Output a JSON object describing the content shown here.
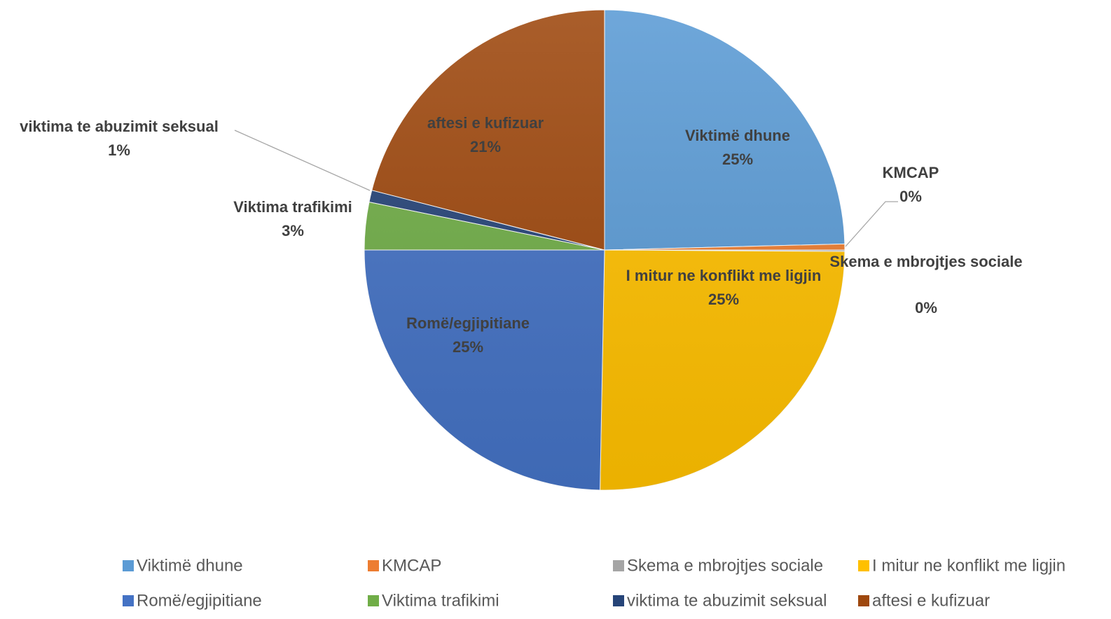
{
  "chart_data": {
    "type": "pie",
    "categories": [
      "Viktimë dhune",
      "KMCAP",
      "Skema e mbrojtjes sociale",
      "I mitur ne konflikt me ligjin",
      "Romë/egjipitiane",
      "Viktima trafikimi",
      "viktima te abuzimit seksual",
      "aftesi e kufizuar"
    ],
    "values": [
      24.6,
      0.4,
      0.1,
      25.2,
      24.7,
      3.2,
      0.8,
      21.0
    ],
    "value_labels": [
      "25%",
      "0%",
      "0%",
      "25%",
      "25%",
      "3%",
      "1%",
      "21%"
    ],
    "colors": [
      "#5b9bd5",
      "#ed7d31",
      "#a5a5a5",
      "#ffc000",
      "#4472c4",
      "#70ad47",
      "#264478",
      "#9e480e"
    ],
    "legend": "bottom"
  }
}
